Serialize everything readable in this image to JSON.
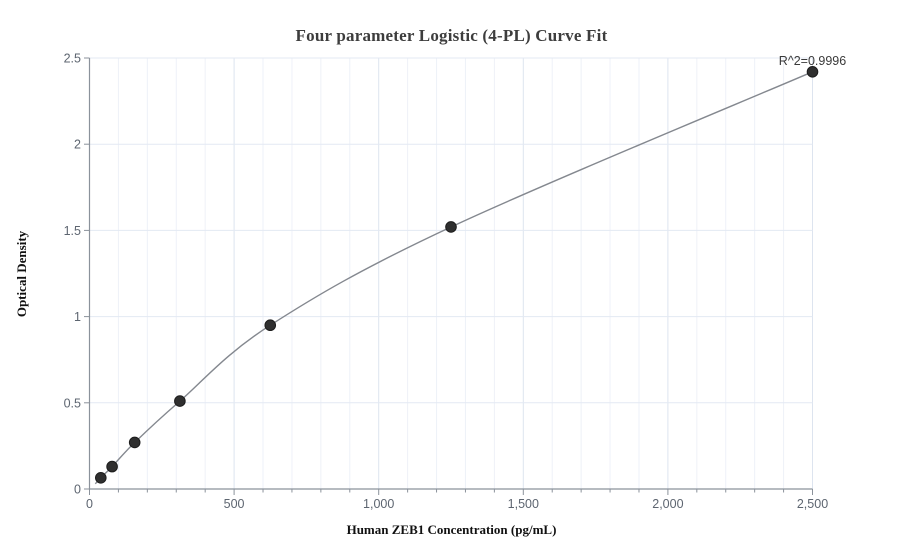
{
  "window": {
    "background_color": "#ffffff"
  },
  "chart_data": {
    "type": "scatter",
    "title": "Four parameter Logistic (4-PL) Curve Fit",
    "xlabel": "Human ZEB1 Concentration (pg/mL)",
    "ylabel": "Optical Density",
    "annotation": "R^2=0.9996",
    "xlim": [
      0,
      2500
    ],
    "ylim": [
      0,
      2.5
    ],
    "x_major_ticks": [
      0,
      500,
      1000,
      1500,
      2000,
      2500
    ],
    "x_tick_labels": [
      "0",
      "500",
      "1,000",
      "1,500",
      "2,000",
      "2,500"
    ],
    "x_minor_tick_step": 100,
    "y_major_ticks": [
      0,
      0.5,
      1,
      1.5,
      2,
      2.5
    ],
    "y_tick_labels": [
      "0",
      "0.5",
      "1",
      "1.5",
      "2",
      "2.5"
    ],
    "grid": true,
    "legend": false,
    "series": [
      {
        "name": "standard-points",
        "type": "scatter",
        "x": [
          39.06,
          78.13,
          156.25,
          312.5,
          625,
          1250,
          2500
        ],
        "y": [
          0.065,
          0.13,
          0.27,
          0.51,
          0.95,
          1.52,
          2.42
        ]
      },
      {
        "name": "4pl-fitted-curve",
        "type": "line",
        "start_point": {
          "x": 20,
          "y": 0.03
        }
      }
    ],
    "colors": {
      "point_fill": "#2f2f2f",
      "point_stroke": "#1c1c1c",
      "curve_line": "#84888f",
      "axis_line": "#8b929b",
      "grid_horizontal": "#e3e9f3",
      "grid_vertical_major": "#dde4ef",
      "grid_vertical_minor": "#eef1f8",
      "tick_label": "#5d6570",
      "title_text": "#3d3d3d"
    }
  }
}
